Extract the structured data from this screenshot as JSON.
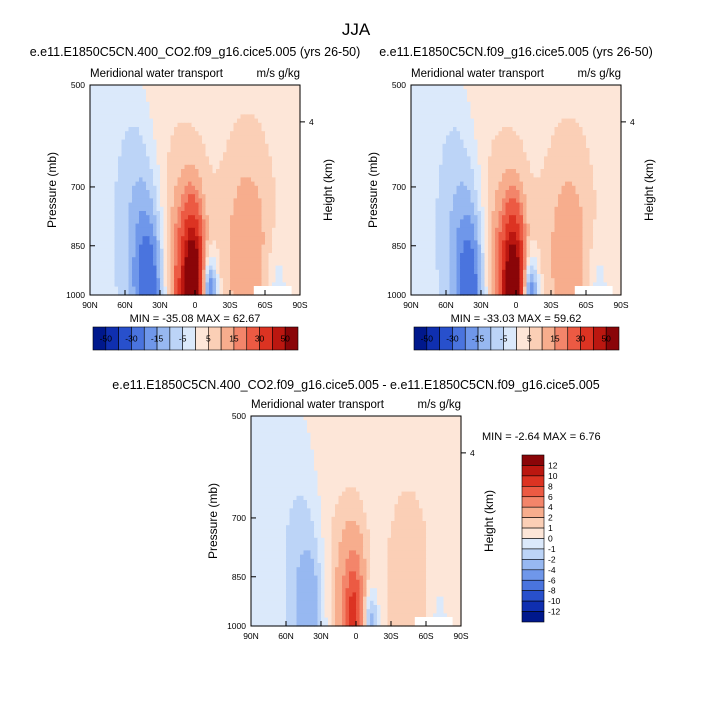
{
  "figure": {
    "title": "JJA"
  },
  "colors": {
    "neg": [
      "#dbe9fb",
      "#bcd4f7",
      "#97b8f1",
      "#6f97ea",
      "#4a74de",
      "#2850cc",
      "#0f2fb0",
      "#00188c"
    ],
    "pos": [
      "#fde6d8",
      "#fbcfb6",
      "#f7ad8d",
      "#f3856a",
      "#ec5a43",
      "#dc3322",
      "#bb1710",
      "#8a0508"
    ],
    "line": "#000000"
  },
  "chart_data": [
    {
      "id": "p1",
      "type": "heatmap",
      "title": "e.e11.E1850C5CN.400_CO2.f09_g16.cice5.005 (yrs 26-50)",
      "left_string": "Meridional water transport",
      "right_string": "m/s g/kg",
      "xlabel": "",
      "ylabel": "Pressure (mb)",
      "y2label": "Height (km)",
      "x_ticks": [
        "90N",
        "60N",
        "30N",
        "0",
        "30S",
        "60S",
        "90S"
      ],
      "y_ticks": [
        "500",
        "700",
        "850",
        "1000"
      ],
      "y_tick_values": [
        500,
        700,
        850,
        1000
      ],
      "y_range": [
        500,
        1000
      ],
      "y2_ticks": [
        "4"
      ],
      "y2_tick_values": [
        4
      ],
      "min_max_text": "MIN = -35.08  MAX = 62.67",
      "min": -35.08,
      "max": 62.67,
      "levels": [
        -50,
        -40,
        -30,
        -20,
        -15,
        -10,
        -5,
        0,
        5,
        10,
        15,
        20,
        30,
        40,
        50
      ],
      "colorbar_labels": [
        "-50",
        "-30",
        "-15",
        "-5",
        "5",
        "15",
        "30",
        "50"
      ],
      "colorbar_orientation": "horizontal",
      "scale": 1.0
    },
    {
      "id": "p2",
      "type": "heatmap",
      "title": "e.e11.E1850C5CN.f09_g16.cice5.005 (yrs 26-50)",
      "left_string": "Meridional water transport",
      "right_string": "m/s g/kg",
      "xlabel": "",
      "ylabel": "Pressure (mb)",
      "y2label": "Height (km)",
      "x_ticks": [
        "90N",
        "60N",
        "30N",
        "0",
        "30S",
        "60S",
        "90S"
      ],
      "y_ticks": [
        "500",
        "700",
        "850",
        "1000"
      ],
      "y_tick_values": [
        500,
        700,
        850,
        1000
      ],
      "y_range": [
        500,
        1000
      ],
      "y2_ticks": [
        "4"
      ],
      "y2_tick_values": [
        4
      ],
      "min_max_text": "MIN = -33.03  MAX = 59.62",
      "min": -33.03,
      "max": 59.62,
      "levels": [
        -50,
        -40,
        -30,
        -20,
        -15,
        -10,
        -5,
        0,
        5,
        10,
        15,
        20,
        30,
        40,
        50
      ],
      "colorbar_labels": [
        "-50",
        "-30",
        "-15",
        "-5",
        "5",
        "15",
        "30",
        "50"
      ],
      "colorbar_orientation": "horizontal",
      "scale": 0.95
    },
    {
      "id": "p3",
      "type": "heatmap",
      "title": "e.e11.E1850C5CN.400_CO2.f09_g16.cice5.005 - e.e11.E1850C5CN.f09_g16.cice5.005",
      "left_string": "Meridional water transport",
      "right_string": "m/s g/kg",
      "xlabel": "",
      "ylabel": "Pressure (mb)",
      "y2label": "Height (km)",
      "x_ticks": [
        "90N",
        "60N",
        "30N",
        "0",
        "30S",
        "60S",
        "90S"
      ],
      "y_ticks": [
        "500",
        "700",
        "850",
        "1000"
      ],
      "y_tick_values": [
        500,
        700,
        850,
        1000
      ],
      "y_range": [
        500,
        1000
      ],
      "y2_ticks": [
        "4"
      ],
      "y2_tick_values": [
        4
      ],
      "min_max_text": "MIN = -2.64  MAX =   6.76",
      "min": -2.64,
      "max": 6.76,
      "levels": [
        -12,
        -10,
        -8,
        -6,
        -4,
        -2,
        -1,
        0,
        1,
        2,
        4,
        6,
        8,
        10,
        12
      ],
      "colorbar_labels": [
        "12",
        "10",
        "8",
        "6",
        "4",
        "2",
        "1",
        "0",
        "-1",
        "-2",
        "-4",
        "-6",
        "-8",
        "-10",
        "-12"
      ],
      "colorbar_orientation": "vertical",
      "scale": 0.12
    }
  ]
}
